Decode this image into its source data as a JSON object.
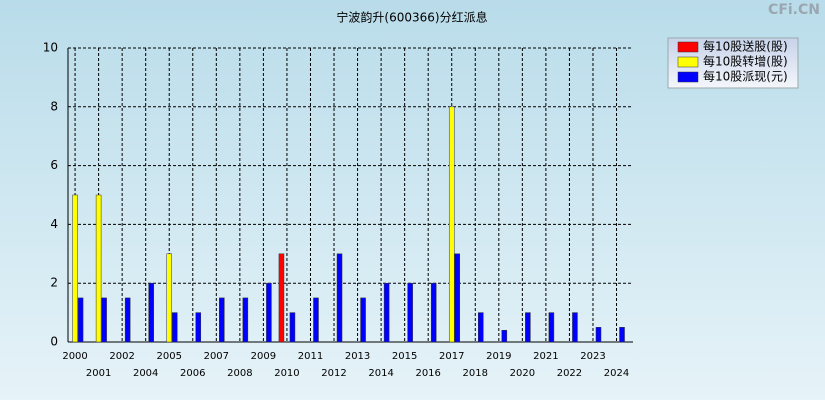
{
  "chart_data": {
    "type": "bar",
    "title": "宁波韵升(600366)分红派息",
    "watermark": "CFi.CN",
    "categories": [
      "2000",
      "2001",
      "2002",
      "2004",
      "2005",
      "2006",
      "2007",
      "2008",
      "2009",
      "2010",
      "2011",
      "2012",
      "2013",
      "2014",
      "2015",
      "2016",
      "2017",
      "2018",
      "2019",
      "2020",
      "2021",
      "2022",
      "2023",
      "2024"
    ],
    "series": [
      {
        "name": "每10股送股(股)",
        "color": "#ff0000",
        "values": [
          0,
          0,
          0,
          0,
          0,
          0,
          0,
          0,
          0,
          3,
          0,
          0,
          0,
          0,
          0,
          0,
          0,
          0,
          0,
          0,
          0,
          0,
          0,
          0
        ]
      },
      {
        "name": "每10股转增(股)",
        "color": "#ffff00",
        "values": [
          5,
          5,
          0,
          0,
          3,
          0,
          0,
          0,
          0,
          0,
          0,
          0,
          0,
          0,
          0,
          0,
          8,
          0,
          0,
          0,
          0,
          0,
          0,
          0
        ]
      },
      {
        "name": "每10股派现(元)",
        "color": "#0000ff",
        "values": [
          1.5,
          1.5,
          1.5,
          2,
          1,
          1,
          1.5,
          1.5,
          2,
          1,
          1.5,
          3,
          1.5,
          2,
          2,
          2,
          3,
          1,
          0.4,
          1,
          1,
          1,
          0.5,
          0.5
        ]
      }
    ],
    "ylim": [
      0,
      10
    ],
    "yticks": [
      0,
      2,
      4,
      6,
      8,
      10
    ],
    "grid": true,
    "legend": "top-right"
  }
}
